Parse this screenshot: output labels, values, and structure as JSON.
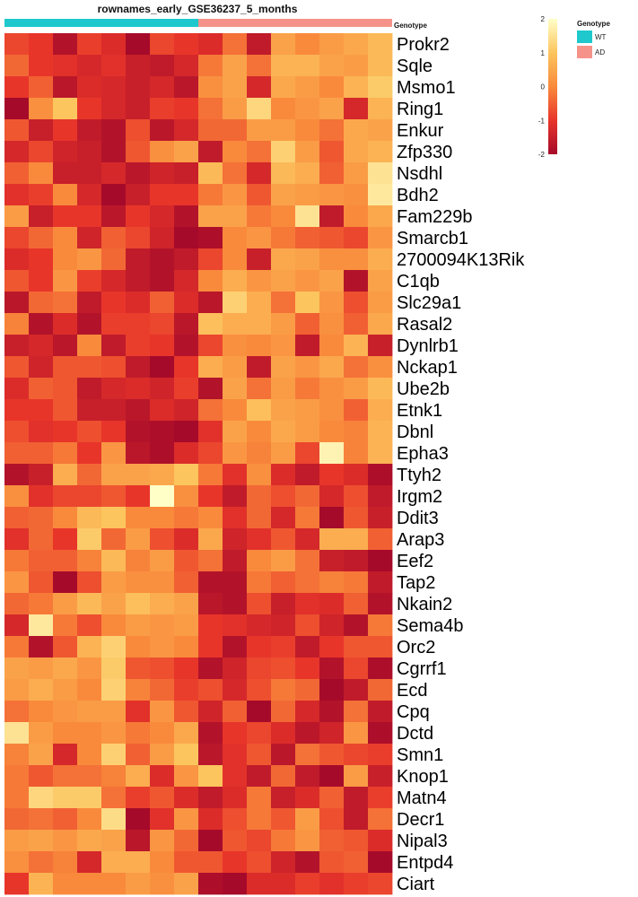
{
  "chart_data": {
    "type": "heatmap",
    "title": "rownames_early_GSE36237_5_months",
    "rows": [
      "Prokr2",
      "Sqle",
      "Msmo1",
      "Ring1",
      "Enkur",
      "Zfp330",
      "Nsdhl",
      "Bdh2",
      "Fam229b",
      "Smarcb1",
      "2700094K13Rik",
      "C1qb",
      "Slc29a1",
      "Rasal2",
      "Dynlrb1",
      "Nckap1",
      "Ube2b",
      "Etnk1",
      "Dbnl",
      "Epha3",
      "Ttyh2",
      "Irgm2",
      "Ddit3",
      "Arap3",
      "Eef2",
      "Tap2",
      "Nkain2",
      "Sema4b",
      "Orc2",
      "Cgrrf1",
      "Ecd",
      "Cpq",
      "Dctd",
      "Smn1",
      "Knop1",
      "Matn4",
      "Decr1",
      "Nipal3",
      "Entpd4",
      "Ciart"
    ],
    "column_annotation": {
      "name": "Genotype",
      "groups": [
        {
          "label": "WT",
          "count": 8,
          "color": "#1ec8cc"
        },
        {
          "label": "AD",
          "count": 8,
          "color": "#f5938a"
        }
      ]
    },
    "legend": {
      "title": "Genotype",
      "items": [
        {
          "label": "WT",
          "color": "#1ec8cc"
        },
        {
          "label": "AD",
          "color": "#f5938a"
        }
      ]
    },
    "color_scale": {
      "min": -2,
      "max": 2,
      "ticks": [
        2,
        1,
        0,
        -1,
        -2
      ],
      "stops": [
        {
          "value": -2,
          "color": "#a60a2a"
        },
        {
          "value": -1,
          "color": "#e8352a"
        },
        {
          "value": 0,
          "color": "#f98a3c"
        },
        {
          "value": 1,
          "color": "#fcc55e"
        },
        {
          "value": 2,
          "color": "#ffffc8"
        }
      ]
    },
    "values": [
      [
        -0.8,
        -1.0,
        -1.8,
        -0.9,
        -1.2,
        -2.0,
        -0.8,
        -1.0,
        -1.2,
        -0.3,
        -1.6,
        0.4,
        0.0,
        0.3,
        0.5,
        0.8
      ],
      [
        -0.4,
        -1.0,
        -1.1,
        -1.3,
        -1.1,
        -1.5,
        -1.6,
        -1.3,
        -0.2,
        0.4,
        -0.3,
        0.7,
        0.7,
        0.4,
        0.3,
        0.8
      ],
      [
        -1.0,
        -0.5,
        -1.7,
        -1.2,
        -1.3,
        -1.5,
        -1.3,
        -1.7,
        0.1,
        0.4,
        -1.3,
        0.5,
        0.3,
        0.0,
        0.7,
        1.1
      ],
      [
        -2.1,
        0.1,
        1.0,
        -1.0,
        -1.3,
        -1.5,
        -0.9,
        -1.0,
        -0.3,
        0.3,
        1.3,
        0.0,
        0.2,
        0.4,
        -1.3,
        0.7
      ],
      [
        -0.6,
        -1.5,
        -1.0,
        -1.6,
        -1.8,
        -0.7,
        -1.7,
        -1.3,
        -0.4,
        -0.4,
        0.3,
        0.3,
        0.0,
        -0.3,
        0.5,
        0.4
      ],
      [
        -1.3,
        -0.8,
        -1.4,
        -1.5,
        -1.8,
        -0.6,
        0.1,
        0.4,
        -1.6,
        0.0,
        -0.3,
        1.2,
        0.3,
        -0.6,
        0.5,
        0.7
      ],
      [
        -0.5,
        0.0,
        -1.5,
        -1.5,
        -1.3,
        -1.7,
        -1.4,
        -1.5,
        0.8,
        -0.3,
        -1.3,
        0.8,
        0.6,
        -0.5,
        0.3,
        1.5
      ],
      [
        -1.1,
        -0.9,
        0.0,
        -1.3,
        -2.2,
        -1.5,
        -1.0,
        -1.0,
        -0.2,
        0.2,
        -0.6,
        0.4,
        0.3,
        0.2,
        0.1,
        1.6
      ],
      [
        0.3,
        -1.5,
        -1.0,
        -1.0,
        -1.7,
        -1.0,
        -1.3,
        -1.8,
        0.4,
        0.4,
        -0.2,
        0.0,
        1.5,
        -1.6,
        0.0,
        0.5
      ],
      [
        -0.8,
        -0.4,
        0.0,
        -1.4,
        -0.5,
        -0.8,
        -1.4,
        -2.2,
        -1.9,
        0.0,
        0.2,
        -0.2,
        -0.5,
        -0.6,
        -0.8,
        0.2
      ],
      [
        -1.2,
        -1.0,
        0.0,
        0.2,
        -0.4,
        -1.6,
        -1.8,
        -1.6,
        -0.8,
        0.0,
        -1.5,
        0.5,
        0.4,
        0.1,
        0.1,
        0.6
      ],
      [
        -0.6,
        -1.0,
        0.2,
        -0.9,
        -1.3,
        -1.6,
        -1.8,
        -1.3,
        0.0,
        0.6,
        0.2,
        0.4,
        0.2,
        0.4,
        -1.8,
        0.4
      ],
      [
        -1.7,
        -0.4,
        -0.3,
        -1.6,
        -1.0,
        -1.2,
        -0.5,
        -1.2,
        -1.7,
        1.2,
        0.6,
        -0.3,
        1.0,
        0.2,
        -0.7,
        0.3
      ],
      [
        -0.1,
        -1.8,
        -1.2,
        -1.8,
        -0.9,
        -0.9,
        -0.8,
        -1.7,
        0.9,
        0.6,
        0.6,
        0.3,
        -0.5,
        0.1,
        -0.5,
        0.5
      ],
      [
        -1.5,
        -1.3,
        -1.7,
        0.0,
        -1.6,
        -0.9,
        -1.0,
        -1.8,
        -0.8,
        0.1,
        0.0,
        0.2,
        -1.6,
        0.0,
        0.7,
        -1.5
      ],
      [
        -0.6,
        -1.4,
        -0.6,
        -0.6,
        -0.7,
        -1.6,
        -2.0,
        -1.0,
        0.6,
        0.3,
        -1.6,
        0.4,
        0.2,
        0.5,
        -0.3,
        0.1
      ],
      [
        -1.2,
        -0.5,
        -0.6,
        -1.6,
        -1.3,
        -1.2,
        -1.4,
        -0.9,
        -1.8,
        0.4,
        -0.3,
        0.3,
        -0.2,
        0.1,
        0.3,
        0.8
      ],
      [
        -1.0,
        -1.0,
        -0.6,
        -1.5,
        -1.5,
        -1.7,
        -1.2,
        -1.4,
        -0.3,
        0.0,
        0.9,
        0.4,
        0.3,
        0.1,
        -0.5,
        0.6
      ],
      [
        -0.7,
        -1.1,
        -1.0,
        -0.7,
        -1.0,
        -1.8,
        -1.9,
        -2.0,
        -1.1,
        0.4,
        0.0,
        0.5,
        0.3,
        0.0,
        -0.1,
        0.7
      ],
      [
        -0.5,
        -0.5,
        -0.2,
        -1.0,
        0.2,
        -1.7,
        -1.9,
        -1.2,
        -0.8,
        0.2,
        -0.1,
        0.3,
        -0.8,
        1.8,
        -0.1,
        0.7
      ],
      [
        -1.8,
        -1.5,
        0.6,
        -0.4,
        0.4,
        0.4,
        0.5,
        1.0,
        -0.2,
        -1.1,
        0.1,
        -1.2,
        -1.6,
        -1.0,
        -1.2,
        -1.9
      ],
      [
        0.1,
        -1.1,
        -0.8,
        -0.8,
        -0.6,
        -1.0,
        2.0,
        0.1,
        -1.0,
        -1.6,
        -0.4,
        -0.7,
        -0.4,
        -1.3,
        -0.7,
        -1.6
      ],
      [
        -0.5,
        -0.4,
        0.0,
        0.8,
        1.0,
        0.0,
        0.0,
        -0.2,
        0.0,
        -1.1,
        -0.4,
        -1.3,
        -0.2,
        -2.2,
        -0.6,
        -1.5
      ],
      [
        -1.1,
        -0.4,
        -1.0,
        1.1,
        -0.4,
        0.3,
        -0.7,
        -1.2,
        0.5,
        -1.4,
        -1.1,
        -0.6,
        -1.3,
        0.6,
        0.6,
        -0.5
      ],
      [
        -0.2,
        -0.5,
        -0.5,
        -0.1,
        0.8,
        -0.1,
        0.3,
        -0.6,
        -0.3,
        -1.6,
        0.0,
        0.3,
        -0.3,
        -1.5,
        -1.6,
        -2.1
      ],
      [
        0.2,
        -0.6,
        -2.0,
        -0.7,
        0.3,
        0.1,
        0.1,
        -0.5,
        -1.8,
        -1.8,
        -0.2,
        -0.5,
        -0.3,
        -0.1,
        -0.2,
        -1.6
      ],
      [
        -0.4,
        -0.2,
        0.3,
        0.8,
        0.4,
        0.9,
        0.6,
        0.4,
        -1.7,
        -1.8,
        -0.7,
        -1.5,
        -1.1,
        -1.2,
        -0.5,
        -1.8
      ],
      [
        -1.3,
        1.6,
        -0.2,
        -0.7,
        0.0,
        0.3,
        0.2,
        0.3,
        -1.0,
        -1.1,
        -1.3,
        -1.4,
        -0.7,
        -1.4,
        -1.8,
        -0.2
      ],
      [
        -0.2,
        -1.8,
        -0.6,
        0.7,
        1.2,
        0.0,
        0.2,
        0.0,
        -1.0,
        -1.8,
        -1.0,
        -0.9,
        -1.6,
        -1.0,
        -0.6,
        -0.6
      ],
      [
        0.4,
        0.3,
        0.5,
        0.2,
        1.1,
        -0.6,
        -0.7,
        -1.0,
        -1.8,
        -1.4,
        -0.8,
        -0.7,
        -1.0,
        -1.8,
        -0.8,
        -1.9
      ],
      [
        0.3,
        0.6,
        0.3,
        0.0,
        1.2,
        -0.1,
        -0.4,
        -0.9,
        -0.7,
        -1.3,
        -0.7,
        -0.2,
        -0.4,
        -2.2,
        -1.6,
        -0.4
      ],
      [
        -0.3,
        0.0,
        0.2,
        0.3,
        0.3,
        -1.1,
        0.2,
        -0.6,
        -1.4,
        -0.5,
        -2.0,
        -0.4,
        -1.3,
        -1.8,
        -0.3,
        -1.6
      ],
      [
        1.5,
        0.3,
        0.0,
        0.0,
        0.2,
        -0.2,
        0.0,
        0.5,
        -1.8,
        -1.0,
        -0.8,
        -1.2,
        -1.7,
        -1.4,
        0.2,
        -1.9
      ],
      [
        -0.1,
        0.4,
        -1.3,
        0.0,
        1.2,
        -0.5,
        0.3,
        1.0,
        -1.7,
        -1.1,
        -0.6,
        -1.7,
        -0.3,
        -0.6,
        -0.8,
        -0.9
      ],
      [
        -0.2,
        -0.6,
        -0.3,
        -0.3,
        -0.1,
        0.6,
        -1.2,
        0.2,
        1.0,
        -1.1,
        -1.6,
        -0.4,
        -1.6,
        -2.1,
        0.3,
        -1.5
      ],
      [
        -0.2,
        1.3,
        1.1,
        1.1,
        -0.3,
        -0.9,
        -0.6,
        -1.2,
        -1.6,
        -1.2,
        -0.2,
        -1.5,
        -1.2,
        -0.5,
        -1.6,
        -0.9
      ],
      [
        -0.4,
        -0.3,
        -0.5,
        0.0,
        1.4,
        -2.1,
        -1.1,
        0.2,
        -1.2,
        -0.7,
        -0.2,
        -0.6,
        0.3,
        -0.7,
        -1.6,
        -0.3
      ],
      [
        0.3,
        0.4,
        0.2,
        0.5,
        0.4,
        -1.7,
        0.2,
        -0.4,
        -2.3,
        -0.6,
        -0.8,
        -0.2,
        0.2,
        -0.5,
        -0.6,
        -1.2
      ],
      [
        0.1,
        -0.3,
        -0.1,
        -1.3,
        0.6,
        0.6,
        0.0,
        -0.6,
        -0.6,
        -1.0,
        -0.7,
        -1.4,
        -1.8,
        -0.6,
        -0.5,
        -2.1
      ],
      [
        -1.0,
        0.7,
        0.0,
        0.0,
        0.0,
        0.3,
        0.1,
        0.4,
        -1.9,
        -2.0,
        -1.2,
        -1.2,
        -0.9,
        -1.1,
        -0.9,
        -0.8
      ]
    ]
  }
}
